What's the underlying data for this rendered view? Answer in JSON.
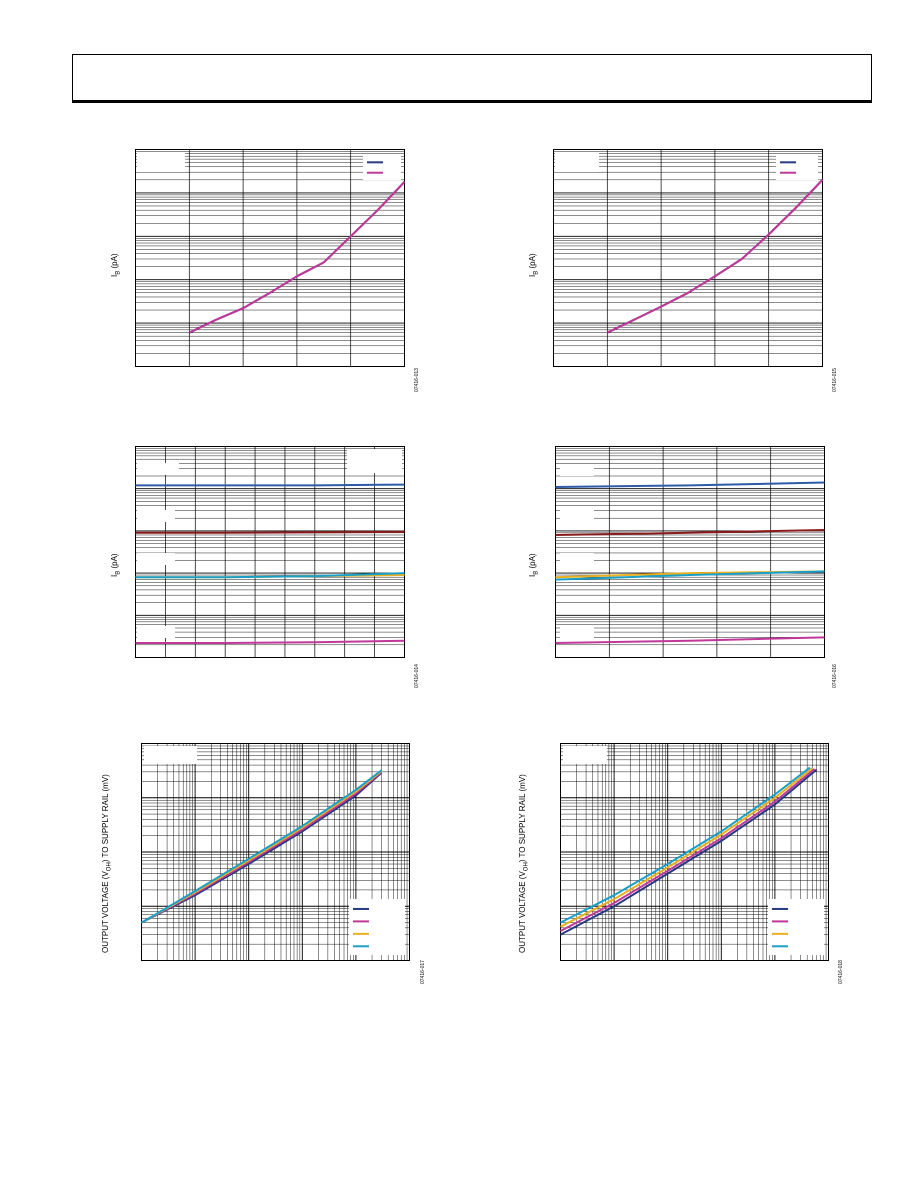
{
  "page": {
    "figure_ids": [
      "07416-013",
      "07416-015",
      "07416-014",
      "07416-016",
      "07416-017",
      "07416-018"
    ]
  },
  "colors": {
    "navy": "#263a82",
    "magenta": "#c0389a",
    "darkred": "#8b1a1a",
    "cyan": "#1aa0c8",
    "yellow": "#e8b020",
    "blue_steel": "#2e5aa8"
  },
  "chart_data": [
    {
      "id": "ib-vs-temp-left",
      "type": "line",
      "ylabel_main": "I",
      "ylabel_sub": "B",
      "ylabel_unit": " (pA)",
      "yscale": "log",
      "ylim": [
        0.001,
        100
      ],
      "xlim": [
        0,
        5
      ],
      "x_major_lines": 4,
      "legend": "top-right",
      "series": [
        {
          "color": "navy",
          "x": [
            1,
            1.5,
            2,
            2.5,
            3,
            3.5,
            4,
            4.5,
            5
          ],
          "y": [
            0.006,
            0.012,
            0.022,
            0.05,
            0.12,
            0.25,
            1.0,
            4.0,
            18.0
          ]
        },
        {
          "color": "magenta",
          "x": [
            1,
            1.5,
            2,
            2.5,
            3,
            3.5,
            4,
            4.5,
            5
          ],
          "y": [
            0.006,
            0.012,
            0.022,
            0.05,
            0.12,
            0.25,
            1.0,
            4.0,
            18.0
          ]
        }
      ]
    },
    {
      "id": "ib-vs-temp-right",
      "type": "line",
      "ylabel_main": "I",
      "ylabel_sub": "B",
      "ylabel_unit": " (pA)",
      "yscale": "log",
      "ylim": [
        0.001,
        100
      ],
      "xlim": [
        0,
        5
      ],
      "x_major_lines": 4,
      "legend": "top-right",
      "series": [
        {
          "color": "navy",
          "x": [
            1,
            1.5,
            2,
            2.5,
            3,
            3.5,
            4,
            4.5,
            5
          ],
          "y": [
            0.006,
            0.012,
            0.024,
            0.05,
            0.12,
            0.3,
            1.1,
            4.5,
            20.0
          ]
        },
        {
          "color": "magenta",
          "x": [
            1,
            1.5,
            2,
            2.5,
            3,
            3.5,
            4,
            4.5,
            5
          ],
          "y": [
            0.006,
            0.012,
            0.024,
            0.05,
            0.12,
            0.3,
            1.1,
            4.5,
            20.0
          ]
        }
      ]
    },
    {
      "id": "ib-vs-vcm-left",
      "type": "line",
      "ylabel_main": "I",
      "ylabel_sub": "B",
      "ylabel_unit": " (pA)",
      "yscale": "log",
      "ylim": [
        0.001,
        100
      ],
      "xlim": [
        0,
        9
      ],
      "x_major_lines": 8,
      "legend": "none",
      "series": [
        {
          "color": "blue_steel",
          "x": [
            0,
            3,
            6,
            9
          ],
          "y": [
            12,
            12,
            12,
            12.5
          ]
        },
        {
          "color": "darkred",
          "x": [
            0,
            3,
            6,
            9
          ],
          "y": [
            0.9,
            0.9,
            0.92,
            0.95
          ]
        },
        {
          "color": "yellow",
          "x": [
            0,
            3,
            6,
            9
          ],
          "y": [
            0.08,
            0.08,
            0.085,
            0.09
          ]
        },
        {
          "color": "cyan",
          "x": [
            0,
            3,
            6,
            9
          ],
          "y": [
            0.08,
            0.08,
            0.085,
            0.1
          ]
        },
        {
          "color": "magenta",
          "x": [
            0,
            3,
            6,
            9
          ],
          "y": [
            0.0022,
            0.0022,
            0.0023,
            0.0025
          ]
        }
      ]
    },
    {
      "id": "ib-vs-vcm-right",
      "type": "line",
      "ylabel_main": "I",
      "ylabel_sub": "B",
      "ylabel_unit": " (pA)",
      "yscale": "log",
      "ylim": [
        0.001,
        100
      ],
      "xlim": [
        0,
        5
      ],
      "x_major_lines": 4,
      "legend": "none",
      "series": [
        {
          "color": "blue_steel",
          "x": [
            0,
            2.5,
            5
          ],
          "y": [
            11,
            12,
            14
          ]
        },
        {
          "color": "darkred",
          "x": [
            0,
            2.5,
            5
          ],
          "y": [
            0.8,
            0.9,
            1.05
          ]
        },
        {
          "color": "yellow",
          "x": [
            0,
            2.5,
            5
          ],
          "y": [
            0.08,
            0.1,
            0.11
          ]
        },
        {
          "color": "cyan",
          "x": [
            0,
            2.5,
            5
          ],
          "y": [
            0.07,
            0.09,
            0.11
          ]
        },
        {
          "color": "magenta",
          "x": [
            0,
            2.5,
            5
          ],
          "y": [
            0.0022,
            0.0025,
            0.003
          ]
        }
      ]
    },
    {
      "id": "voh-left",
      "type": "line",
      "ylabel_main": "OUTPUT VOLTAGE (V",
      "ylabel_sub": "OH",
      "ylabel_unit": ") TO SUPPLY RAIL (mV)",
      "xscale": "log",
      "yscale": "log",
      "xlim": [
        0.001,
        100
      ],
      "ylim": [
        0.1,
        1000
      ],
      "legend": "bottom-right",
      "series": [
        {
          "color": "navy",
          "x": [
            0.001,
            0.01,
            0.1,
            1,
            10,
            30
          ],
          "y": [
            0.5,
            1.6,
            6,
            24,
            110,
            290
          ]
        },
        {
          "color": "magenta",
          "x": [
            0.001,
            0.01,
            0.1,
            1,
            10,
            30
          ],
          "y": [
            0.5,
            1.7,
            6.5,
            26,
            120,
            300
          ]
        },
        {
          "color": "yellow",
          "x": [
            0.001,
            0.01,
            0.1,
            1,
            10,
            30
          ],
          "y": [
            0.5,
            1.8,
            7,
            28,
            130,
            310
          ]
        },
        {
          "color": "cyan",
          "x": [
            0.001,
            0.01,
            0.1,
            1,
            10,
            30
          ],
          "y": [
            0.5,
            1.9,
            7.5,
            30,
            140,
            320
          ]
        }
      ]
    },
    {
      "id": "voh-right",
      "type": "line",
      "ylabel_main": "OUTPUT VOLTAGE (V",
      "ylabel_sub": "OH",
      "ylabel_unit": ") TO SUPPLY RAIL (mV)",
      "xscale": "log",
      "yscale": "log",
      "xlim": [
        0.001,
        100
      ],
      "ylim": [
        0.1,
        1000
      ],
      "legend": "bottom-right",
      "series": [
        {
          "color": "navy",
          "x": [
            0.001,
            0.01,
            0.1,
            1,
            10,
            60
          ],
          "y": [
            0.3,
            1.0,
            4,
            16,
            75,
            330
          ]
        },
        {
          "color": "magenta",
          "x": [
            0.001,
            0.01,
            0.1,
            1,
            10,
            55
          ],
          "y": [
            0.35,
            1.15,
            4.5,
            18,
            85,
            340
          ]
        },
        {
          "color": "yellow",
          "x": [
            0.001,
            0.01,
            0.1,
            1,
            10,
            50
          ],
          "y": [
            0.42,
            1.35,
            5.2,
            21,
            100,
            350
          ]
        },
        {
          "color": "cyan",
          "x": [
            0.001,
            0.01,
            0.1,
            1,
            10,
            45
          ],
          "y": [
            0.5,
            1.6,
            6,
            24,
            115,
            360
          ]
        }
      ]
    }
  ]
}
